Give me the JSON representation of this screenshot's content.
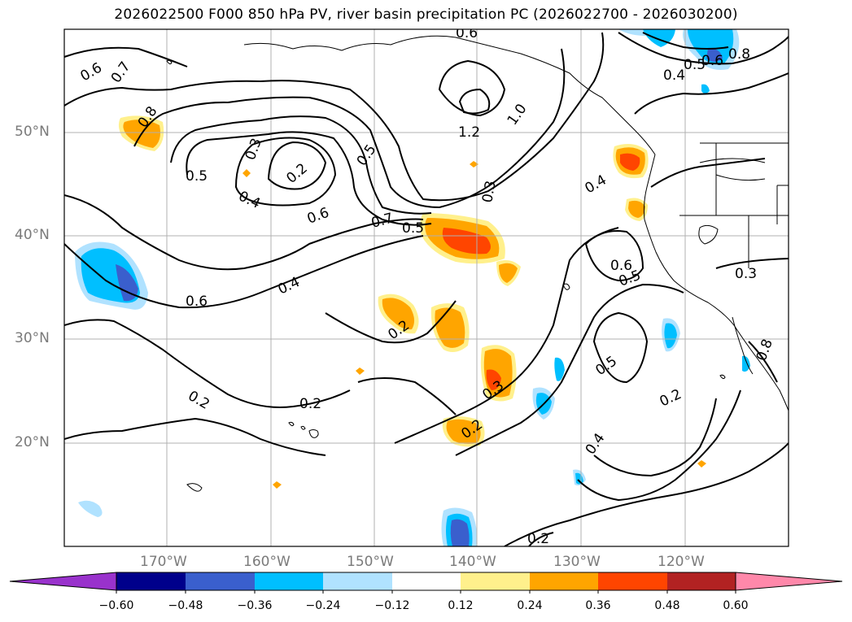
{
  "title": "2026022500 F000 850 hPa PV, river basin precipitation PC (2026022700 - 2026030200)",
  "lat_labels": [
    "50°N",
    "40°N",
    "30°N",
    "20°N"
  ],
  "lon_labels": [
    "170°W",
    "160°W",
    "150°W",
    "140°W",
    "130°W",
    "120°W"
  ],
  "contour_labels": [
    "0.6",
    "0.7",
    "0.8",
    "0.5",
    "0.4",
    "0.3",
    "0.2",
    "0.5",
    "0.6",
    "0.6",
    "0.4",
    "0.7",
    "0.5",
    "1.2",
    "1.0",
    "0.3",
    "0.8",
    "0.5",
    "0.6",
    "0.4",
    "0.4",
    "0.6",
    "0.5",
    "0.3",
    "0.5",
    "0.2",
    "0.2",
    "0.2",
    "0.2",
    "0.3",
    "0.2",
    "0.4",
    "0.2",
    "0.6",
    "0.8"
  ],
  "colorbar": {
    "ticks": [
      "−0.60",
      "−0.48",
      "−0.36",
      "−0.24",
      "−0.12",
      "0.12",
      "0.24",
      "0.36",
      "0.48",
      "0.60"
    ],
    "colors": [
      "#9932cc",
      "#00008b",
      "#3a5fcd",
      "#00bfff",
      "#b0e2ff",
      "#ffffff",
      "#fff08c",
      "#ffa500",
      "#ff4500",
      "#b22222",
      "#ff88aa"
    ]
  },
  "colors": {
    "grid": "#b0b0b0",
    "contour": "#000000",
    "coast": "#000000"
  }
}
